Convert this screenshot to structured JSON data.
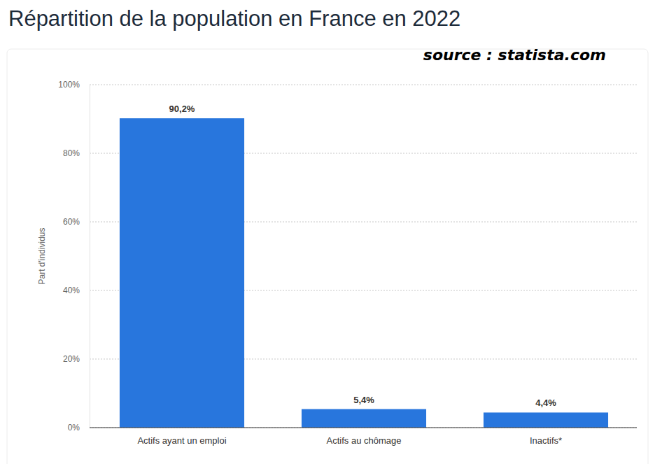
{
  "chart_data": {
    "type": "bar",
    "title": "Répartition de la population en France en 2022",
    "annotations": [
      "source : statista.com"
    ],
    "y_label": "Part d'individus",
    "categories": [
      "Actifs ayant un emploi",
      "Actifs au chômage",
      "Inactifs*"
    ],
    "values": [
      90.2,
      5.4,
      4.4
    ],
    "value_labels": [
      "90,2%",
      "5,4%",
      "4,4%"
    ],
    "data_labels": true,
    "color": "#2876dd",
    "ylim": [
      0,
      100
    ],
    "yticks": [
      {
        "value": 0,
        "label": "0%"
      },
      {
        "value": 20,
        "label": "20%"
      },
      {
        "value": 40,
        "label": "40%"
      },
      {
        "value": 60,
        "label": "60%"
      },
      {
        "value": 80,
        "label": "80%"
      },
      {
        "value": 100,
        "label": "100%"
      }
    ],
    "grid": true
  }
}
